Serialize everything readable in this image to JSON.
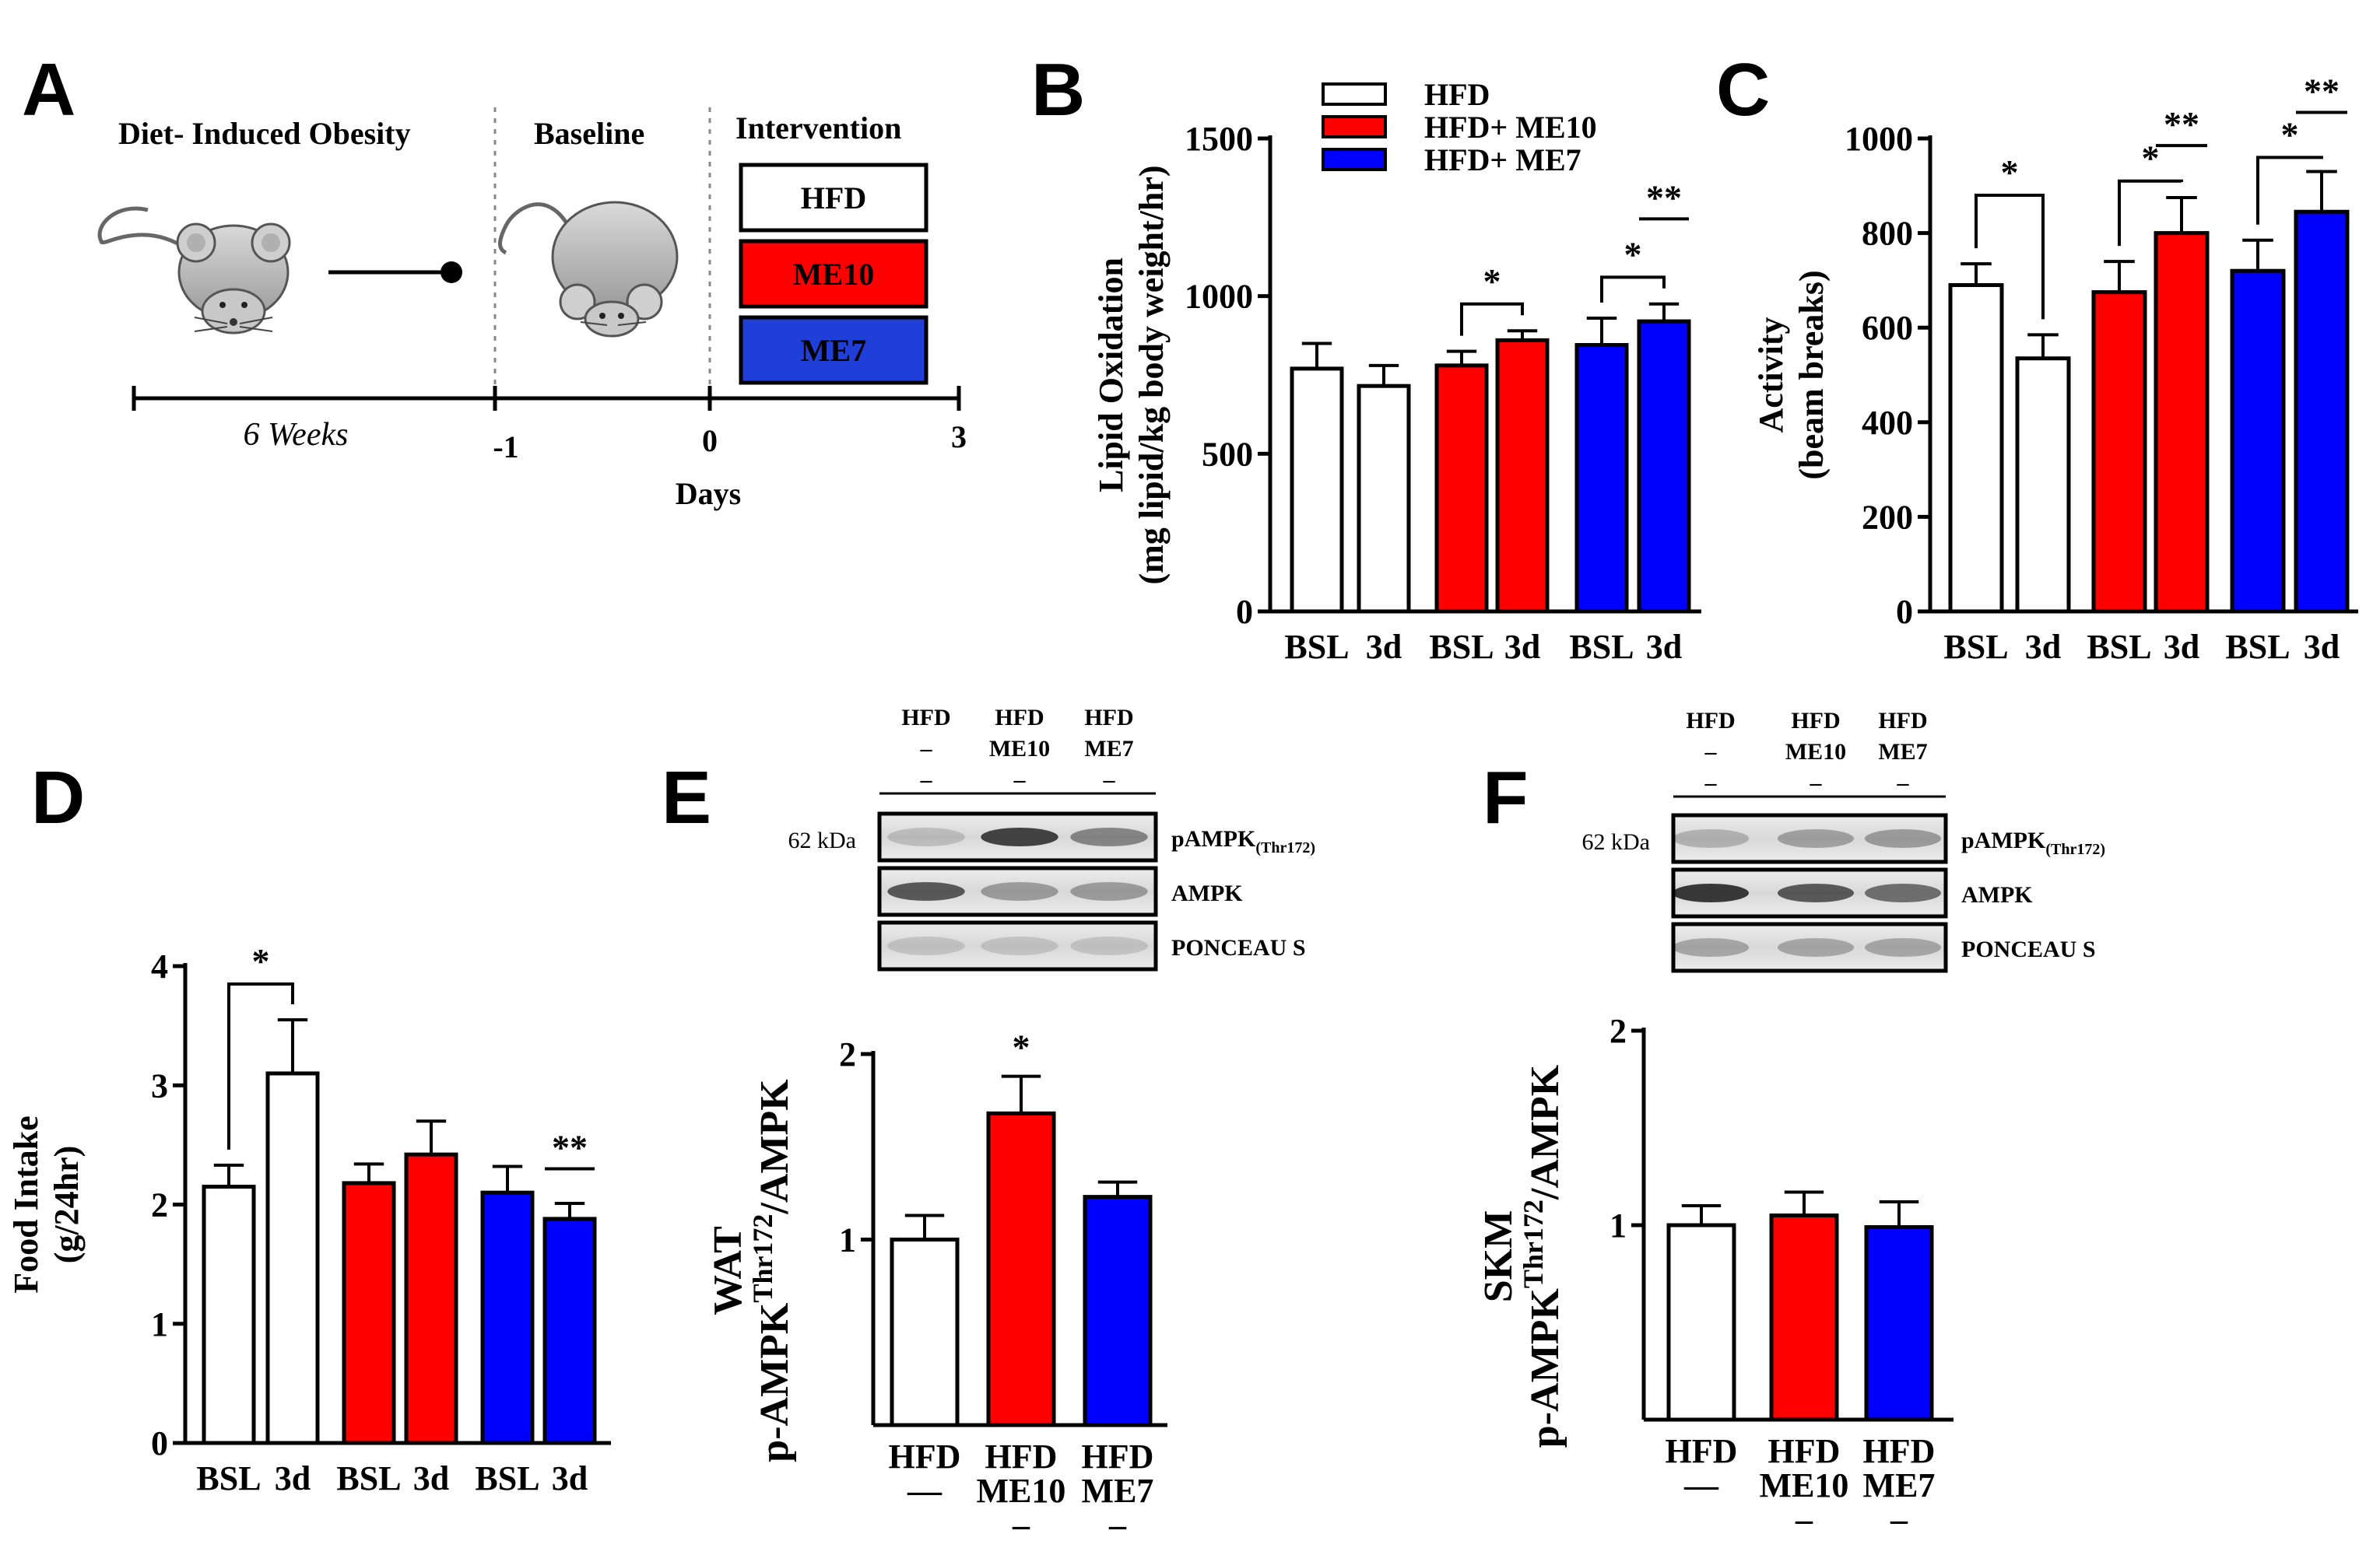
{
  "colors": {
    "hfd": "#ffffff",
    "me10": "#ff0000",
    "me7": "#0000ff"
  },
  "panel_a": {
    "letter": "A",
    "phases": [
      "Diet- Induced Obesity",
      "Baseline",
      "Intervention"
    ],
    "groups": [
      {
        "label": "HFD",
        "color": "#ffffff"
      },
      {
        "label": "ME10",
        "color": "#ff0000"
      },
      {
        "label": "ME7",
        "color": "#1f3fd8"
      }
    ],
    "duration": "6 Weeks",
    "ticks": [
      "-1",
      "0",
      "3"
    ],
    "axis_label": "Days"
  },
  "legend": [
    "HFD",
    "HFD+ ME10",
    "HFD+ ME7"
  ],
  "chart_data": [
    {
      "panel": "B",
      "type": "bar",
      "ylabel": [
        "Lipid Oxidation",
        "(mg lipid/kg body weight/hr)"
      ],
      "ylim": [
        0,
        1500
      ],
      "yticks": [
        0,
        500,
        1000,
        1500
      ],
      "categories": [
        "BSL",
        "3d",
        "BSL",
        "3d",
        "BSL",
        "3d"
      ],
      "groups": [
        "HFD",
        "HFD+ ME10",
        "HFD+ ME7"
      ],
      "values": [
        770,
        715,
        780,
        860,
        845,
        920
      ],
      "errors": [
        80,
        65,
        45,
        30,
        85,
        55
      ],
      "annotations": [
        {
          "from": 2,
          "to": 3,
          "label": "*",
          "style": "bracket",
          "y": 975
        },
        {
          "from": 4,
          "to": 5,
          "label": "*",
          "style": "bracket",
          "y": 1060
        },
        {
          "from": 5,
          "to": 5,
          "label": "**",
          "style": "line",
          "y": 1245
        }
      ]
    },
    {
      "panel": "C",
      "type": "bar",
      "ylabel": [
        "Activity",
        "(beam breaks)"
      ],
      "ylim": [
        0,
        1000
      ],
      "yticks": [
        0,
        200,
        400,
        600,
        800,
        1000
      ],
      "categories": [
        "BSL",
        "3d",
        "BSL",
        "3d",
        "BSL",
        "3d"
      ],
      "groups": [
        "HFD",
        "HFD+ ME10",
        "HFD+ ME7"
      ],
      "values": [
        690,
        535,
        675,
        800,
        720,
        845
      ],
      "errors": [
        45,
        50,
        65,
        75,
        65,
        85
      ],
      "annotations": [
        {
          "from": 0,
          "to": 1,
          "label": "*",
          "style": "bracket",
          "y": 880
        },
        {
          "from": 2,
          "to": 3,
          "label": "*",
          "style": "bracket",
          "y": 910
        },
        {
          "from": 3,
          "to": 3,
          "label": "**",
          "style": "line",
          "y": 985
        },
        {
          "from": 4,
          "to": 5,
          "label": "*",
          "style": "bracket",
          "y": 960
        },
        {
          "from": 5,
          "to": 5,
          "label": "**",
          "style": "line",
          "y": 1055
        }
      ]
    },
    {
      "panel": "D",
      "type": "bar",
      "ylabel": [
        "Food Intake",
        "(g/24hr)"
      ],
      "ylim": [
        0,
        4
      ],
      "yticks": [
        0,
        1,
        2,
        3,
        4
      ],
      "categories": [
        "BSL",
        "3d",
        "BSL",
        "3d",
        "BSL",
        "3d"
      ],
      "groups": [
        "HFD",
        "HFD+ ME10",
        "HFD+ ME7"
      ],
      "values": [
        2.15,
        3.1,
        2.18,
        2.42,
        2.1,
        1.88
      ],
      "errors": [
        0.18,
        0.45,
        0.16,
        0.28,
        0.22,
        0.13
      ],
      "annotations": [
        {
          "from": 0,
          "to": 1,
          "label": "*",
          "style": "bracket",
          "y": 3.85
        },
        {
          "from": 5,
          "to": 5,
          "label": "**",
          "style": "line",
          "y": 2.3
        }
      ]
    },
    {
      "panel": "E",
      "type": "bar",
      "ylabel": [
        "WAT",
        "p-AMPK",
        "Thr172",
        "/AMPK"
      ],
      "ylim": [
        0,
        2
      ],
      "yticks": [
        1,
        2
      ],
      "categories": [
        [
          "HFD",
          "—"
        ],
        [
          "HFD",
          "ME10",
          "–"
        ],
        [
          "HFD",
          "ME7",
          "–"
        ]
      ],
      "values": [
        1.0,
        1.68,
        1.23
      ],
      "errors": [
        0.13,
        0.2,
        0.08
      ],
      "annotations": [
        {
          "bar": 1,
          "label": "*"
        }
      ],
      "blot": {
        "header": [
          [
            "HFD",
            "–",
            "–"
          ],
          [
            "HFD",
            "ME10",
            "–"
          ],
          [
            "HFD",
            "ME7",
            "–"
          ]
        ],
        "size": "62 kDa",
        "rows": [
          {
            "main": "pAMPK",
            "sub": "(Thr172)"
          },
          {
            "main": "AMPK",
            "sub": ""
          },
          {
            "main": "PONCEAU S",
            "sub": ""
          }
        ]
      }
    },
    {
      "panel": "F",
      "type": "bar",
      "ylabel": [
        "SKM",
        "p-AMPK",
        "Thr172",
        "/AMPK"
      ],
      "ylim": [
        0,
        2
      ],
      "yticks": [
        1,
        2
      ],
      "categories": [
        [
          "HFD",
          "—"
        ],
        [
          "HFD",
          "ME10",
          "–"
        ],
        [
          "HFD",
          "ME7",
          "–"
        ]
      ],
      "values": [
        1.0,
        1.05,
        0.99
      ],
      "errors": [
        0.1,
        0.12,
        0.13
      ],
      "annotations": [],
      "blot": {
        "header": [
          [
            "HFD",
            "–",
            "–"
          ],
          [
            "HFD",
            "ME10",
            "–"
          ],
          [
            "HFD",
            "ME7",
            "–"
          ]
        ],
        "size": "62 kDa",
        "rows": [
          {
            "main": "pAMPK",
            "sub": "(Thr172)"
          },
          {
            "main": "AMPK",
            "sub": ""
          },
          {
            "main": "PONCEAU S",
            "sub": ""
          }
        ]
      }
    }
  ]
}
